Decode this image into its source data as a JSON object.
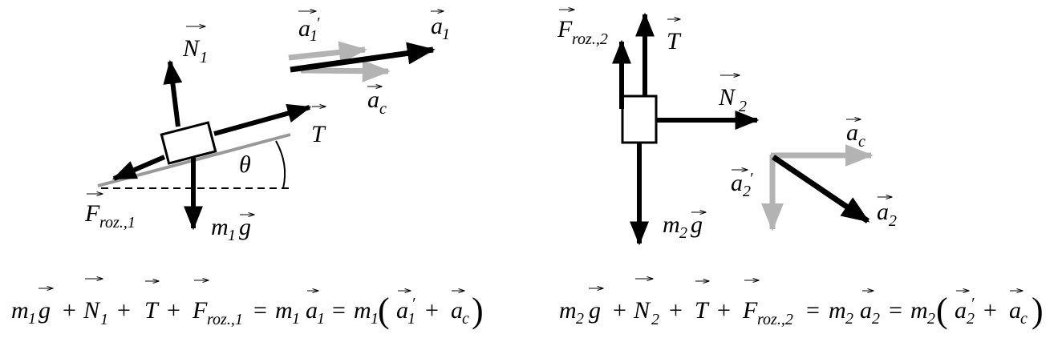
{
  "left_body": {
    "label_N1": {
      "main": "N",
      "sub": "1"
    },
    "label_T": {
      "main": "T"
    },
    "label_Froz1": {
      "main": "F",
      "sub": "roz.,1"
    },
    "label_m1g": {
      "pre": "m",
      "sub": "1",
      "main": "g"
    },
    "label_theta": "θ",
    "label_a1prime": {
      "main": "a",
      "sub": "1",
      "prime": "′"
    },
    "label_a1": {
      "main": "a",
      "sub": "1"
    },
    "label_ac": {
      "main": "a",
      "sub": "c"
    }
  },
  "right_body": {
    "label_Froz2": {
      "main": "F",
      "sub": "roz.,2"
    },
    "label_T": {
      "main": "T"
    },
    "label_N2": {
      "main": "N",
      "sub": "2"
    },
    "label_m2g": {
      "pre": "m",
      "sub": "2",
      "main": "g"
    },
    "label_ac": {
      "main": "a",
      "sub": "c"
    },
    "label_a2prime": {
      "main": "a",
      "sub": "2",
      "prime": "′"
    },
    "label_a2": {
      "main": "a",
      "sub": "2"
    }
  },
  "equations": {
    "left": {
      "m1": "m",
      "m1_sub": "1",
      "g": "g",
      "plus1": "+",
      "N": "N",
      "N_sub": "1",
      "plus2": "+",
      "T": "T",
      "plus3": "+",
      "F": "F",
      "F_sub": "roz.,1",
      "eq1": "=",
      "m1b": "m",
      "m1b_sub": "1",
      "a1": "a",
      "a1_sub": "1",
      "eq2": "=",
      "m1c": "m",
      "m1c_sub": "1",
      "lpar": "(",
      "a1p": "a",
      "a1p_sub": "1",
      "a1p_prime": "′",
      "plus4": "+",
      "ac": "a",
      "ac_sub": "c",
      "rpar": ")"
    },
    "right": {
      "m2": "m",
      "m2_sub": "2",
      "g": "g",
      "plus1": "+",
      "N": "N",
      "N_sub": "2",
      "plus2": "+",
      "T": "T",
      "plus3": "+",
      "F": "F",
      "F_sub": "roz.,2",
      "eq1": "=",
      "m2b": "m",
      "m2b_sub": "2",
      "a2": "a",
      "a2_sub": "2",
      "eq2": "=",
      "m2c": "m",
      "m2c_sub": "2",
      "lpar": "(",
      "a2p": "a",
      "a2p_sub": "2",
      "a2p_prime": "′",
      "plus4": "+",
      "ac": "a",
      "ac_sub": "c",
      "rpar": ")"
    }
  },
  "colors": {
    "ink": "#000000",
    "gray_vector": "#b3b3b3",
    "incline": "#999999"
  }
}
